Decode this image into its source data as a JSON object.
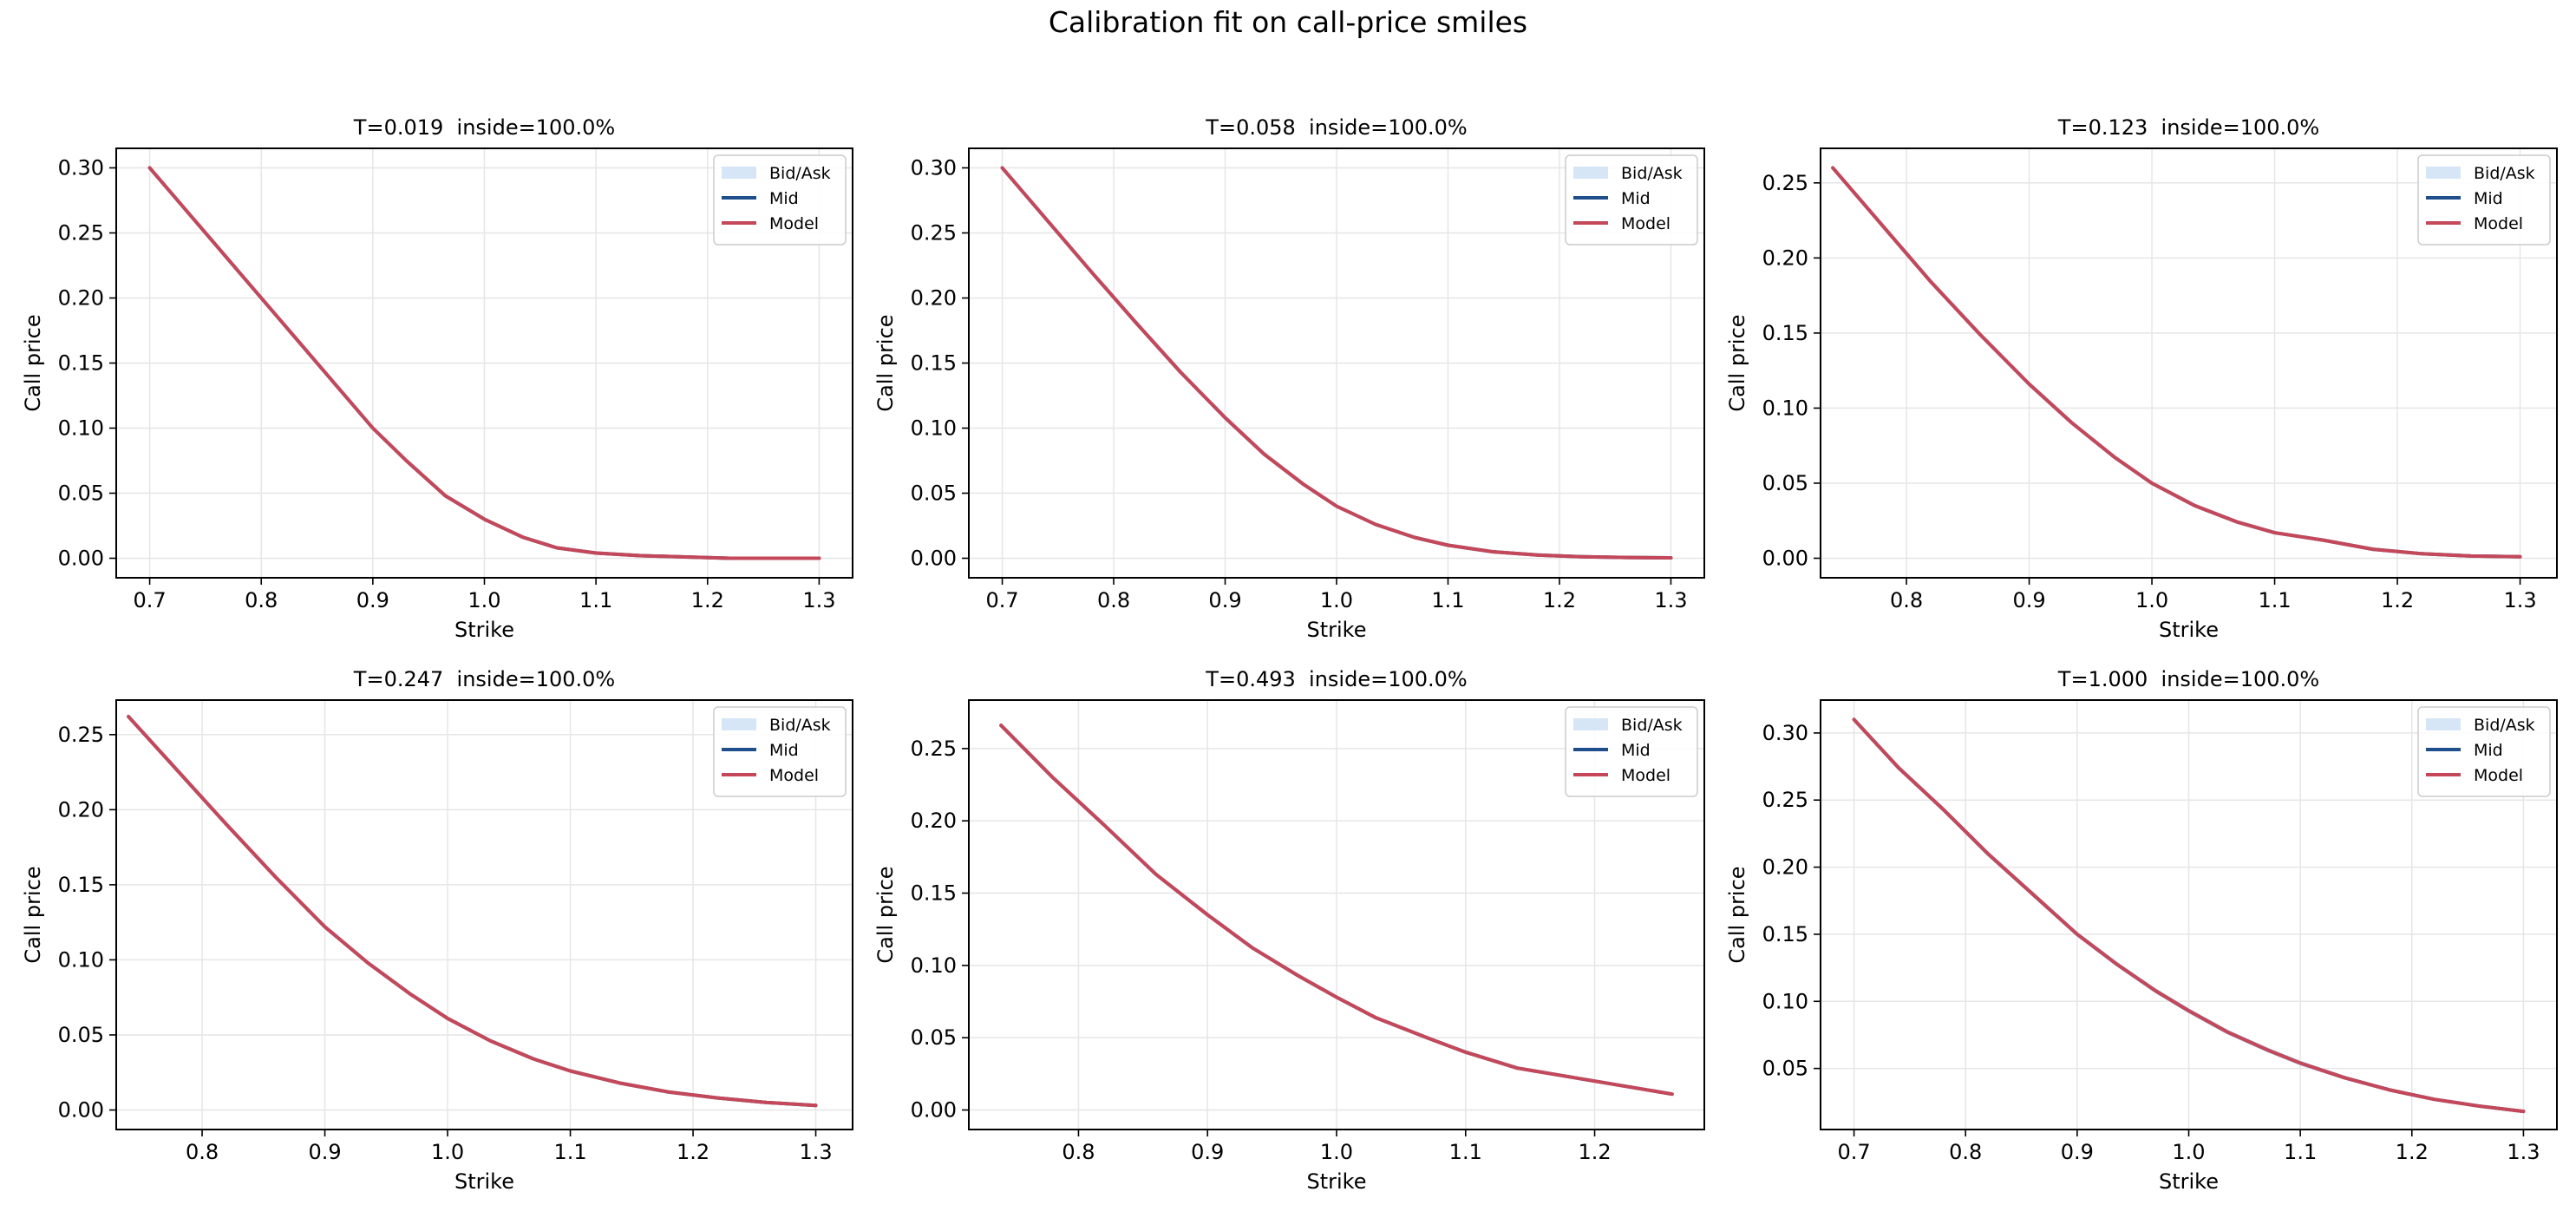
{
  "figure": {
    "title": "Calibration fit on call-price smiles"
  },
  "colors": {
    "bidask": "#d6e6f7",
    "mid": "#1f4e8c",
    "model": "#c4485a",
    "grid": "#e6e6e6"
  },
  "chart_data": [
    {
      "type": "line",
      "title": "T=0.019  inside=100.0%",
      "xlabel": "Strike",
      "ylabel": "Call price",
      "xlim": [
        0.67,
        1.33
      ],
      "ylim": [
        -0.015,
        0.315
      ],
      "xticks": [
        0.7,
        0.8,
        0.9,
        1.0,
        1.1,
        1.2,
        1.3
      ],
      "xtick_labels": [
        "0.7",
        "0.8",
        "0.9",
        "1.0",
        "1.1",
        "1.2",
        "1.3"
      ],
      "yticks": [
        0.0,
        0.05,
        0.1,
        0.15,
        0.2,
        0.25,
        0.3
      ],
      "ytick_labels": [
        "0.00",
        "0.05",
        "0.10",
        "0.15",
        "0.20",
        "0.25",
        "0.30"
      ],
      "legend": [
        "Bid/Ask",
        "Mid",
        "Model"
      ],
      "legend_position": "upper right",
      "grid": true,
      "x": [
        0.7,
        0.74,
        0.78,
        0.82,
        0.86,
        0.9,
        0.93,
        0.965,
        1.0,
        1.035,
        1.065,
        1.1,
        1.14,
        1.18,
        1.22,
        1.26,
        1.3
      ],
      "series": [
        {
          "name": "Mid",
          "values": [
            0.3,
            0.26,
            0.22,
            0.18,
            0.14,
            0.1,
            0.075,
            0.048,
            0.03,
            0.016,
            0.008,
            0.004,
            0.002,
            0.001,
            0.0,
            0.0,
            0.0
          ]
        },
        {
          "name": "Model",
          "values": [
            0.3,
            0.26,
            0.22,
            0.18,
            0.14,
            0.1,
            0.075,
            0.048,
            0.03,
            0.016,
            0.008,
            0.004,
            0.002,
            0.001,
            0.0,
            0.0,
            0.0
          ]
        }
      ],
      "bid": [
        0.299,
        0.259,
        0.219,
        0.179,
        0.139,
        0.099,
        0.074,
        0.047,
        0.029,
        0.015,
        0.0075,
        0.0035,
        0.0018,
        0.0008,
        0.0,
        0.0,
        0.0
      ],
      "ask": [
        0.301,
        0.261,
        0.221,
        0.181,
        0.141,
        0.101,
        0.076,
        0.049,
        0.031,
        0.017,
        0.0085,
        0.0045,
        0.0022,
        0.0012,
        0.0003,
        0.0002,
        0.0002
      ]
    },
    {
      "type": "line",
      "title": "T=0.058  inside=100.0%",
      "xlabel": "Strike",
      "ylabel": "Call price",
      "xlim": [
        0.67,
        1.33
      ],
      "ylim": [
        -0.015,
        0.315
      ],
      "xticks": [
        0.7,
        0.8,
        0.9,
        1.0,
        1.1,
        1.2,
        1.3
      ],
      "xtick_labels": [
        "0.7",
        "0.8",
        "0.9",
        "1.0",
        "1.1",
        "1.2",
        "1.3"
      ],
      "yticks": [
        0.0,
        0.05,
        0.1,
        0.15,
        0.2,
        0.25,
        0.3
      ],
      "ytick_labels": [
        "0.00",
        "0.05",
        "0.10",
        "0.15",
        "0.20",
        "0.25",
        "0.30"
      ],
      "legend": [
        "Bid/Ask",
        "Mid",
        "Model"
      ],
      "legend_position": "upper right",
      "grid": true,
      "x": [
        0.7,
        0.74,
        0.78,
        0.82,
        0.86,
        0.9,
        0.935,
        0.97,
        1.0,
        1.035,
        1.07,
        1.1,
        1.14,
        1.18,
        1.22,
        1.26,
        1.3
      ],
      "series": [
        {
          "name": "Mid",
          "values": [
            0.3,
            0.26,
            0.22,
            0.181,
            0.143,
            0.108,
            0.08,
            0.057,
            0.04,
            0.026,
            0.016,
            0.01,
            0.005,
            0.0025,
            0.0012,
            0.0006,
            0.0003
          ]
        },
        {
          "name": "Model",
          "values": [
            0.3,
            0.26,
            0.22,
            0.181,
            0.143,
            0.108,
            0.08,
            0.057,
            0.04,
            0.026,
            0.016,
            0.01,
            0.005,
            0.0025,
            0.0012,
            0.0006,
            0.0003
          ]
        }
      ],
      "bid": [
        0.299,
        0.259,
        0.219,
        0.18,
        0.142,
        0.107,
        0.079,
        0.056,
        0.039,
        0.025,
        0.0152,
        0.0093,
        0.0045,
        0.0022,
        0.001,
        0.0004,
        0.0001
      ],
      "ask": [
        0.301,
        0.261,
        0.221,
        0.182,
        0.144,
        0.109,
        0.081,
        0.058,
        0.041,
        0.027,
        0.0168,
        0.0107,
        0.0055,
        0.0028,
        0.0014,
        0.0008,
        0.0005
      ]
    },
    {
      "type": "line",
      "title": "T=0.123  inside=100.0%",
      "xlabel": "Strike",
      "ylabel": "Call price",
      "xlim": [
        0.73,
        1.33
      ],
      "ylim": [
        -0.013,
        0.273
      ],
      "xticks": [
        0.8,
        0.9,
        1.0,
        1.1,
        1.2,
        1.3
      ],
      "xtick_labels": [
        "0.8",
        "0.9",
        "1.0",
        "1.1",
        "1.2",
        "1.3"
      ],
      "yticks": [
        0.0,
        0.05,
        0.1,
        0.15,
        0.2,
        0.25
      ],
      "ytick_labels": [
        "0.00",
        "0.05",
        "0.10",
        "0.15",
        "0.20",
        "0.25"
      ],
      "legend": [
        "Bid/Ask",
        "Mid",
        "Model"
      ],
      "legend_position": "upper right",
      "grid": true,
      "x": [
        0.74,
        0.78,
        0.82,
        0.86,
        0.9,
        0.935,
        0.97,
        1.0,
        1.035,
        1.07,
        1.1,
        1.14,
        1.18,
        1.22,
        1.26,
        1.3
      ],
      "series": [
        {
          "name": "Mid",
          "values": [
            0.26,
            0.222,
            0.184,
            0.149,
            0.116,
            0.09,
            0.067,
            0.05,
            0.035,
            0.024,
            0.017,
            0.012,
            0.006,
            0.003,
            0.0015,
            0.001
          ]
        },
        {
          "name": "Model",
          "values": [
            0.26,
            0.222,
            0.184,
            0.149,
            0.116,
            0.09,
            0.067,
            0.05,
            0.035,
            0.024,
            0.017,
            0.012,
            0.006,
            0.003,
            0.0015,
            0.001
          ]
        }
      ],
      "bid": [
        0.259,
        0.221,
        0.183,
        0.148,
        0.115,
        0.089,
        0.066,
        0.049,
        0.034,
        0.023,
        0.0162,
        0.0113,
        0.0055,
        0.0026,
        0.0012,
        0.0007
      ],
      "ask": [
        0.261,
        0.223,
        0.185,
        0.15,
        0.117,
        0.091,
        0.068,
        0.051,
        0.036,
        0.025,
        0.0178,
        0.0127,
        0.0065,
        0.0034,
        0.0018,
        0.0013
      ]
    },
    {
      "type": "line",
      "title": "T=0.247  inside=100.0%",
      "xlabel": "Strike",
      "ylabel": "Call price",
      "xlim": [
        0.73,
        1.33
      ],
      "ylim": [
        -0.013,
        0.273
      ],
      "xticks": [
        0.8,
        0.9,
        1.0,
        1.1,
        1.2,
        1.3
      ],
      "xtick_labels": [
        "0.8",
        "0.9",
        "1.0",
        "1.1",
        "1.2",
        "1.3"
      ],
      "yticks": [
        0.0,
        0.05,
        0.1,
        0.15,
        0.2,
        0.25
      ],
      "ytick_labels": [
        "0.00",
        "0.05",
        "0.10",
        "0.15",
        "0.20",
        "0.25"
      ],
      "legend": [
        "Bid/Ask",
        "Mid",
        "Model"
      ],
      "legend_position": "upper right",
      "grid": true,
      "x": [
        0.74,
        0.78,
        0.82,
        0.86,
        0.9,
        0.935,
        0.97,
        1.0,
        1.035,
        1.07,
        1.1,
        1.14,
        1.18,
        1.22,
        1.26,
        1.3
      ],
      "series": [
        {
          "name": "Mid",
          "values": [
            0.262,
            0.226,
            0.19,
            0.155,
            0.122,
            0.098,
            0.077,
            0.061,
            0.046,
            0.034,
            0.026,
            0.018,
            0.012,
            0.008,
            0.005,
            0.003
          ]
        },
        {
          "name": "Model",
          "values": [
            0.262,
            0.226,
            0.19,
            0.155,
            0.122,
            0.098,
            0.077,
            0.061,
            0.046,
            0.034,
            0.026,
            0.018,
            0.012,
            0.008,
            0.005,
            0.003
          ]
        }
      ],
      "bid": [
        0.261,
        0.225,
        0.189,
        0.154,
        0.121,
        0.097,
        0.076,
        0.06,
        0.045,
        0.033,
        0.025,
        0.017,
        0.0112,
        0.0072,
        0.0043,
        0.0024
      ],
      "ask": [
        0.263,
        0.227,
        0.191,
        0.156,
        0.123,
        0.099,
        0.078,
        0.062,
        0.047,
        0.035,
        0.027,
        0.019,
        0.0128,
        0.0088,
        0.0057,
        0.0036
      ]
    },
    {
      "type": "line",
      "title": "T=0.493  inside=100.0%",
      "xlabel": "Strike",
      "ylabel": "Call price",
      "xlim": [
        0.715,
        1.285
      ],
      "ylim": [
        -0.0135,
        0.2835
      ],
      "xticks": [
        0.8,
        0.9,
        1.0,
        1.1,
        1.2
      ],
      "xtick_labels": [
        "0.8",
        "0.9",
        "1.0",
        "1.1",
        "1.2"
      ],
      "yticks": [
        0.0,
        0.05,
        0.1,
        0.15,
        0.2,
        0.25
      ],
      "ytick_labels": [
        "0.00",
        "0.05",
        "0.10",
        "0.15",
        "0.20",
        "0.25"
      ],
      "legend": [
        "Bid/Ask",
        "Mid",
        "Model"
      ],
      "legend_position": "upper right",
      "grid": true,
      "x": [
        0.74,
        0.78,
        0.82,
        0.86,
        0.9,
        0.935,
        0.97,
        1.0,
        1.03,
        1.07,
        1.1,
        1.14,
        1.18,
        1.22,
        1.26
      ],
      "series": [
        {
          "name": "Mid",
          "values": [
            0.266,
            0.23,
            0.197,
            0.163,
            0.135,
            0.112,
            0.093,
            0.078,
            0.064,
            0.05,
            0.04,
            0.029,
            0.023,
            0.017,
            0.011
          ]
        },
        {
          "name": "Model",
          "values": [
            0.266,
            0.23,
            0.197,
            0.163,
            0.135,
            0.112,
            0.093,
            0.078,
            0.064,
            0.05,
            0.04,
            0.029,
            0.023,
            0.017,
            0.011
          ]
        }
      ],
      "bid": [
        0.265,
        0.229,
        0.196,
        0.162,
        0.134,
        0.111,
        0.092,
        0.077,
        0.063,
        0.049,
        0.039,
        0.028,
        0.022,
        0.016,
        0.0102
      ],
      "ask": [
        0.267,
        0.231,
        0.198,
        0.164,
        0.136,
        0.113,
        0.094,
        0.079,
        0.065,
        0.051,
        0.041,
        0.03,
        0.024,
        0.018,
        0.0118
      ]
    },
    {
      "type": "line",
      "title": "T=1.000  inside=100.0%",
      "xlabel": "Strike",
      "ylabel": "Call price",
      "xlim": [
        0.67,
        1.33
      ],
      "ylim": [
        0.0045,
        0.3245
      ],
      "xticks": [
        0.7,
        0.8,
        0.9,
        1.0,
        1.1,
        1.2,
        1.3
      ],
      "xtick_labels": [
        "0.7",
        "0.8",
        "0.9",
        "1.0",
        "1.1",
        "1.2",
        "1.3"
      ],
      "yticks": [
        0.05,
        0.1,
        0.15,
        0.2,
        0.25,
        0.3
      ],
      "ytick_labels": [
        "0.05",
        "0.10",
        "0.15",
        "0.20",
        "0.25",
        "0.30"
      ],
      "legend": [
        "Bid/Ask",
        "Mid",
        "Model"
      ],
      "legend_position": "upper right",
      "grid": true,
      "x": [
        0.7,
        0.74,
        0.78,
        0.82,
        0.86,
        0.9,
        0.935,
        0.97,
        1.0,
        1.035,
        1.07,
        1.1,
        1.14,
        1.18,
        1.22,
        1.26,
        1.3
      ],
      "series": [
        {
          "name": "Mid",
          "values": [
            0.31,
            0.274,
            0.243,
            0.21,
            0.18,
            0.15,
            0.128,
            0.108,
            0.093,
            0.077,
            0.064,
            0.054,
            0.043,
            0.034,
            0.027,
            0.022,
            0.018
          ]
        },
        {
          "name": "Model",
          "values": [
            0.31,
            0.274,
            0.243,
            0.21,
            0.18,
            0.15,
            0.128,
            0.108,
            0.093,
            0.077,
            0.064,
            0.054,
            0.043,
            0.034,
            0.027,
            0.022,
            0.018
          ]
        }
      ],
      "bid": [
        0.308,
        0.272,
        0.241,
        0.208,
        0.178,
        0.148,
        0.126,
        0.106,
        0.091,
        0.075,
        0.062,
        0.052,
        0.0415,
        0.0328,
        0.0258,
        0.0208,
        0.0168
      ],
      "ask": [
        0.312,
        0.276,
        0.245,
        0.212,
        0.182,
        0.152,
        0.13,
        0.11,
        0.095,
        0.079,
        0.066,
        0.056,
        0.0445,
        0.0352,
        0.0282,
        0.0232,
        0.0192
      ]
    }
  ]
}
